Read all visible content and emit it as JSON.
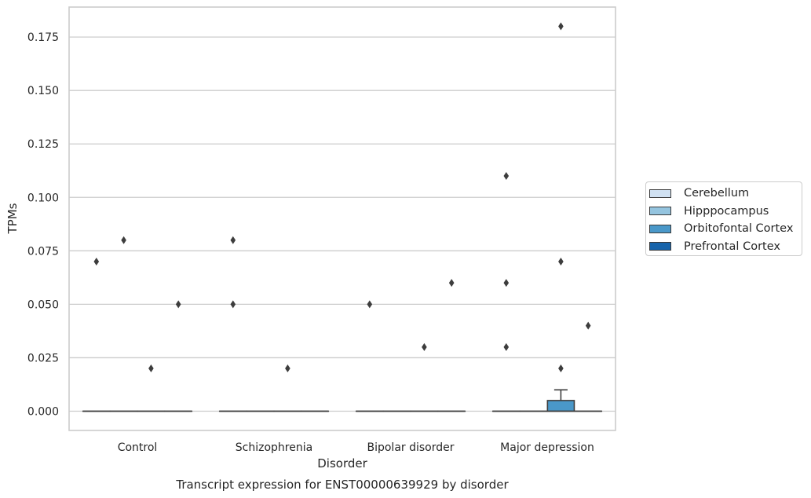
{
  "chart_data": {
    "type": "box",
    "title": "Transcript expression for ENST00000639929 by disorder",
    "xlabel": "Disorder",
    "ylabel": "TPMs",
    "categories": [
      "Control",
      "Schizophrenia",
      "Bipolar disorder",
      "Major depression"
    ],
    "ylim": [
      -0.009,
      0.189
    ],
    "yticks": [
      "0.000",
      "0.025",
      "0.050",
      "0.075",
      "0.100",
      "0.125",
      "0.150",
      "0.175"
    ],
    "ytick_values": [
      0,
      0.025,
      0.05,
      0.075,
      0.1,
      0.125,
      0.15,
      0.175
    ],
    "grid": "horizontal",
    "legend_position": "right",
    "series": [
      {
        "name": "Cerebellum",
        "color": "#d0e1f2",
        "boxes": [
          {
            "q1": 0,
            "median": 0,
            "q3": 0,
            "whisker_low": 0,
            "whisker_high": 0,
            "outliers": [
              0.07
            ]
          },
          {
            "q1": 0,
            "median": 0,
            "q3": 0,
            "whisker_low": 0,
            "whisker_high": 0,
            "outliers": [
              0.08,
              0.05
            ]
          },
          {
            "q1": 0,
            "median": 0,
            "q3": 0,
            "whisker_low": 0,
            "whisker_high": 0,
            "outliers": [
              0.05
            ]
          },
          {
            "q1": 0,
            "median": 0,
            "q3": 0,
            "whisker_low": 0,
            "whisker_high": 0,
            "outliers": [
              0.11,
              0.06,
              0.03
            ]
          }
        ]
      },
      {
        "name": "Hipppocampus",
        "color": "#94c4df",
        "boxes": [
          {
            "q1": 0,
            "median": 0,
            "q3": 0,
            "whisker_low": 0,
            "whisker_high": 0,
            "outliers": [
              0.08
            ]
          },
          {
            "q1": 0,
            "median": 0,
            "q3": 0,
            "whisker_low": 0,
            "whisker_high": 0,
            "outliers": []
          },
          {
            "q1": 0,
            "median": 0,
            "q3": 0,
            "whisker_low": 0,
            "whisker_high": 0,
            "outliers": []
          },
          {
            "q1": 0,
            "median": 0,
            "q3": 0,
            "whisker_low": 0,
            "whisker_high": 0,
            "outliers": []
          }
        ]
      },
      {
        "name": "Orbitofontal Cortex",
        "color": "#4a98c9",
        "boxes": [
          {
            "q1": 0,
            "median": 0,
            "q3": 0,
            "whisker_low": 0,
            "whisker_high": 0,
            "outliers": [
              0.02
            ]
          },
          {
            "q1": 0,
            "median": 0,
            "q3": 0,
            "whisker_low": 0,
            "whisker_high": 0,
            "outliers": [
              0.02
            ]
          },
          {
            "q1": 0,
            "median": 0,
            "q3": 0,
            "whisker_low": 0,
            "whisker_high": 0,
            "outliers": [
              0.03
            ]
          },
          {
            "q1": 0,
            "median": 0,
            "q3": 0.005,
            "whisker_low": 0,
            "whisker_high": 0.01,
            "outliers": [
              0.18,
              0.07,
              0.02
            ]
          }
        ]
      },
      {
        "name": "Prefrontal Cortex",
        "color": "#1764ab",
        "boxes": [
          {
            "q1": 0,
            "median": 0,
            "q3": 0,
            "whisker_low": 0,
            "whisker_high": 0,
            "outliers": [
              0.05
            ]
          },
          {
            "q1": 0,
            "median": 0,
            "q3": 0,
            "whisker_low": 0,
            "whisker_high": 0,
            "outliers": []
          },
          {
            "q1": 0,
            "median": 0,
            "q3": 0,
            "whisker_low": 0,
            "whisker_high": 0,
            "outliers": [
              0.06
            ]
          },
          {
            "q1": 0,
            "median": 0,
            "q3": 0,
            "whisker_low": 0,
            "whisker_high": 0,
            "outliers": [
              0.04
            ]
          }
        ]
      }
    ]
  }
}
